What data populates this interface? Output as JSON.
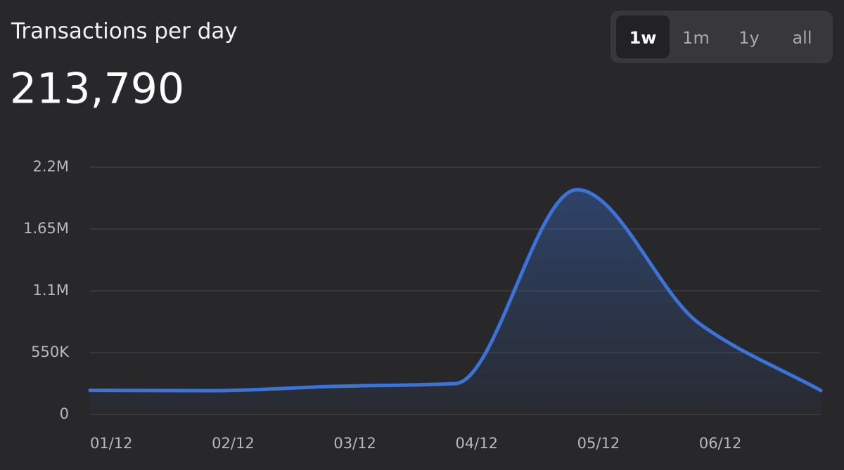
{
  "chart_data": {
    "type": "line",
    "title": "Transactions per day",
    "headline": "213,790",
    "range_buttons": [
      "1w",
      "1m",
      "1y",
      "all"
    ],
    "selected_range": "1w",
    "categories": [
      "01/12",
      "02/12",
      "03/12",
      "04/12",
      "05/12",
      "06/12",
      null
    ],
    "series": [
      {
        "name": "Transactions",
        "color": "#3b73d9",
        "values": [
          215000,
          212000,
          250000,
          275000,
          2000000,
          812000,
          213790
        ]
      }
    ],
    "ylim": [
      0,
      2200000
    ],
    "yticks": [
      0,
      {
        "value": 550000,
        "label": "550K"
      },
      {
        "value": 1100000,
        "label": "1.1M"
      },
      {
        "value": 1650000,
        "label": "1.65M"
      },
      {
        "value": 2200000,
        "label": "2.2M"
      }
    ],
    "grid": true
  }
}
